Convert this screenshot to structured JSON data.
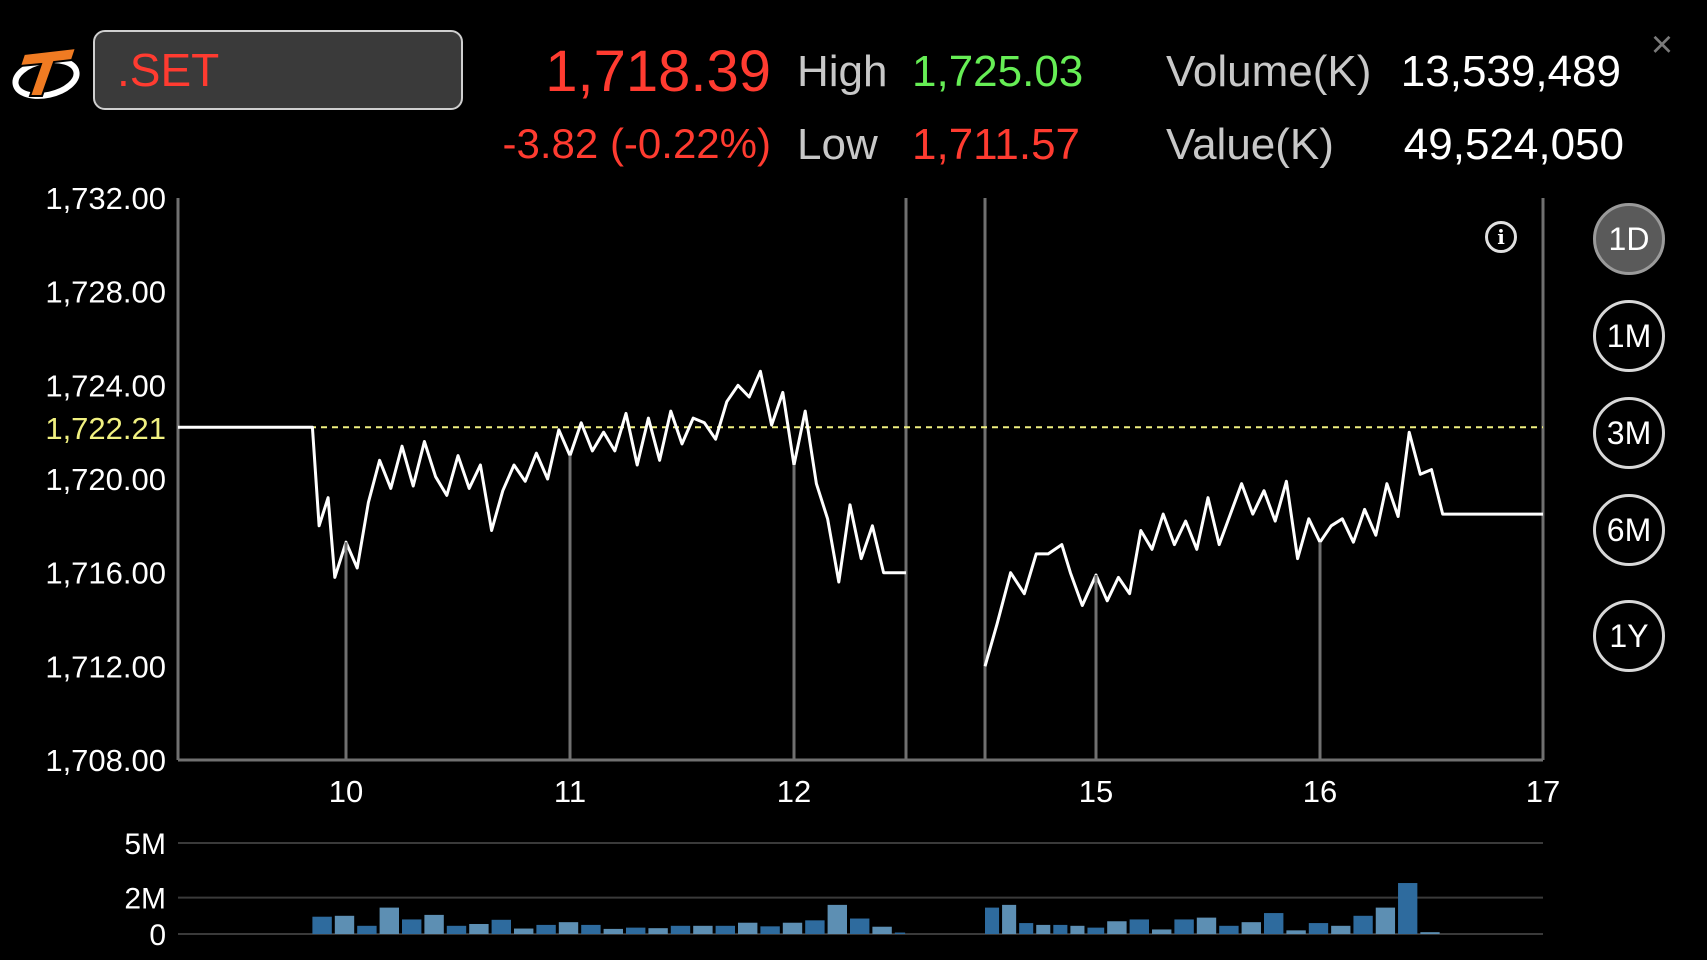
{
  "header": {
    "symbol": ".SET",
    "last_price": "1,718.39",
    "change": "-3.82 (-0.22%)",
    "high_label": "High",
    "high_value": "1,725.03",
    "low_label": "Low",
    "low_value": "1,711.57",
    "volume_label": "Volume(K)",
    "volume_value": "13,539,489",
    "value_label": "Value(K)",
    "value_value": "49,524,050",
    "close_glyph": "×"
  },
  "icons": {
    "logo": "settrade-logo-icon",
    "close": "close-icon",
    "info": "info-icon"
  },
  "colors": {
    "down": "#ff3b30",
    "up": "#66ee55",
    "reference": "#f0f080",
    "volume_bar": "#2e6b9e",
    "volume_bar_light": "#5d8fb3",
    "line": "#ffffff"
  },
  "range_buttons": [
    {
      "label": "1D",
      "active": true
    },
    {
      "label": "1M",
      "active": false
    },
    {
      "label": "3M",
      "active": false
    },
    {
      "label": "6M",
      "active": false
    },
    {
      "label": "1Y",
      "active": false
    }
  ],
  "info_glyph": "i",
  "chart_data": {
    "type": "line",
    "ylim": [
      1708,
      1732
    ],
    "y_tick_labels": [
      "1,732.00",
      "1,728.00",
      "1,724.00",
      "1,720.00",
      "1,716.00",
      "1,712.00",
      "1,708.00"
    ],
    "y_ticks": [
      1732,
      1728,
      1724,
      1720,
      1716,
      1712,
      1708
    ],
    "reference": {
      "label": "1,722.21",
      "value": 1722.21
    },
    "x_tick_labels": [
      "10",
      "11",
      "12",
      "15",
      "16",
      "17"
    ],
    "x_ticks": [
      10,
      11,
      12,
      15,
      16,
      17
    ],
    "x_range": [
      9.25,
      17
    ],
    "gap": [
      12.5,
      14.35
    ],
    "series": [
      {
        "segment": "before-gap",
        "x": [
          9.25,
          9.35,
          9.45,
          9.55,
          9.65,
          9.75,
          9.85,
          9.88,
          9.92,
          9.95,
          10.0,
          10.05,
          10.1,
          10.15,
          10.2,
          10.25,
          10.3,
          10.35,
          10.4,
          10.45,
          10.5,
          10.55,
          10.6,
          10.65,
          10.7,
          10.75,
          10.8,
          10.85,
          10.9,
          10.95,
          11.0,
          11.05,
          11.1,
          11.15,
          11.2,
          11.25,
          11.3,
          11.35,
          11.4,
          11.45,
          11.5,
          11.55,
          11.6,
          11.65,
          11.7,
          11.75,
          11.8,
          11.85,
          11.9,
          11.95,
          12.0,
          12.05,
          12.1,
          12.15,
          12.2,
          12.25,
          12.3,
          12.35,
          12.4,
          12.45,
          12.5
        ],
        "y": [
          1722.21,
          1722.21,
          1722.21,
          1722.21,
          1722.21,
          1722.21,
          1722.21,
          1718.0,
          1719.2,
          1715.8,
          1717.3,
          1716.2,
          1719.0,
          1720.8,
          1719.6,
          1721.4,
          1719.7,
          1721.6,
          1720.1,
          1719.3,
          1721.0,
          1719.6,
          1720.6,
          1717.8,
          1719.5,
          1720.6,
          1719.9,
          1721.1,
          1720.0,
          1722.1,
          1721.0,
          1722.4,
          1721.2,
          1722.0,
          1721.2,
          1722.8,
          1720.6,
          1722.6,
          1720.8,
          1722.9,
          1721.5,
          1722.6,
          1722.4,
          1721.7,
          1723.3,
          1724.0,
          1723.5,
          1724.6,
          1722.3,
          1723.7,
          1720.6,
          1722.9,
          1719.8,
          1718.3,
          1715.6,
          1718.9,
          1716.6,
          1718.0,
          1716.0,
          1716.0,
          1716.0
        ]
      },
      {
        "segment": "after-gap",
        "x": [
          14.35,
          14.42,
          14.5,
          14.58,
          14.65,
          14.72,
          14.8,
          14.85,
          14.92,
          15.0,
          15.05,
          15.1,
          15.15,
          15.2,
          15.25,
          15.3,
          15.35,
          15.4,
          15.45,
          15.5,
          15.55,
          15.6,
          15.65,
          15.7,
          15.75,
          15.8,
          15.85,
          15.9,
          15.95,
          16.0,
          16.05,
          16.1,
          16.15,
          16.2,
          16.25,
          16.3,
          16.35,
          16.4,
          16.45,
          16.5,
          16.55,
          16.6,
          16.8,
          17.0
        ],
        "y": [
          1712.0,
          1713.8,
          1716.0,
          1715.1,
          1716.8,
          1716.8,
          1717.2,
          1716.0,
          1714.6,
          1715.9,
          1714.8,
          1715.8,
          1715.1,
          1717.8,
          1717.0,
          1718.5,
          1717.2,
          1718.2,
          1717.0,
          1719.2,
          1717.2,
          1718.5,
          1719.8,
          1718.5,
          1719.5,
          1718.2,
          1719.9,
          1716.6,
          1718.3,
          1717.3,
          1718.0,
          1718.3,
          1717.3,
          1718.7,
          1717.6,
          1719.8,
          1718.4,
          1722.0,
          1720.2,
          1720.4,
          1718.5,
          1718.5,
          1718.5,
          1718.5
        ]
      }
    ],
    "volume": {
      "ylim": [
        0,
        5
      ],
      "y_tick_labels": [
        "5M",
        "2M",
        "0"
      ],
      "y_ticks": [
        5,
        2,
        0
      ],
      "bars_before_gap": {
        "x_start": 9.85,
        "x_step": 0.1,
        "values": [
          0.95,
          1.0,
          0.45,
          1.45,
          0.8,
          1.05,
          0.45,
          0.55,
          0.78,
          0.3,
          0.5,
          0.65,
          0.5,
          0.28,
          0.35,
          0.32,
          0.45,
          0.45,
          0.45,
          0.62,
          0.42,
          0.62,
          0.75,
          1.6,
          0.85,
          0.4,
          0.08
        ]
      },
      "bars_after_gap": {
        "x_start": 14.35,
        "x_step": 0.1,
        "values": [
          1.45,
          1.6,
          0.6,
          0.5,
          0.5,
          0.45,
          0.35,
          0.7,
          0.8,
          0.25,
          0.8,
          0.9,
          0.45,
          0.65,
          1.15,
          0.2,
          0.6,
          0.45,
          1.0,
          1.45,
          2.8,
          0.1
        ]
      }
    }
  }
}
